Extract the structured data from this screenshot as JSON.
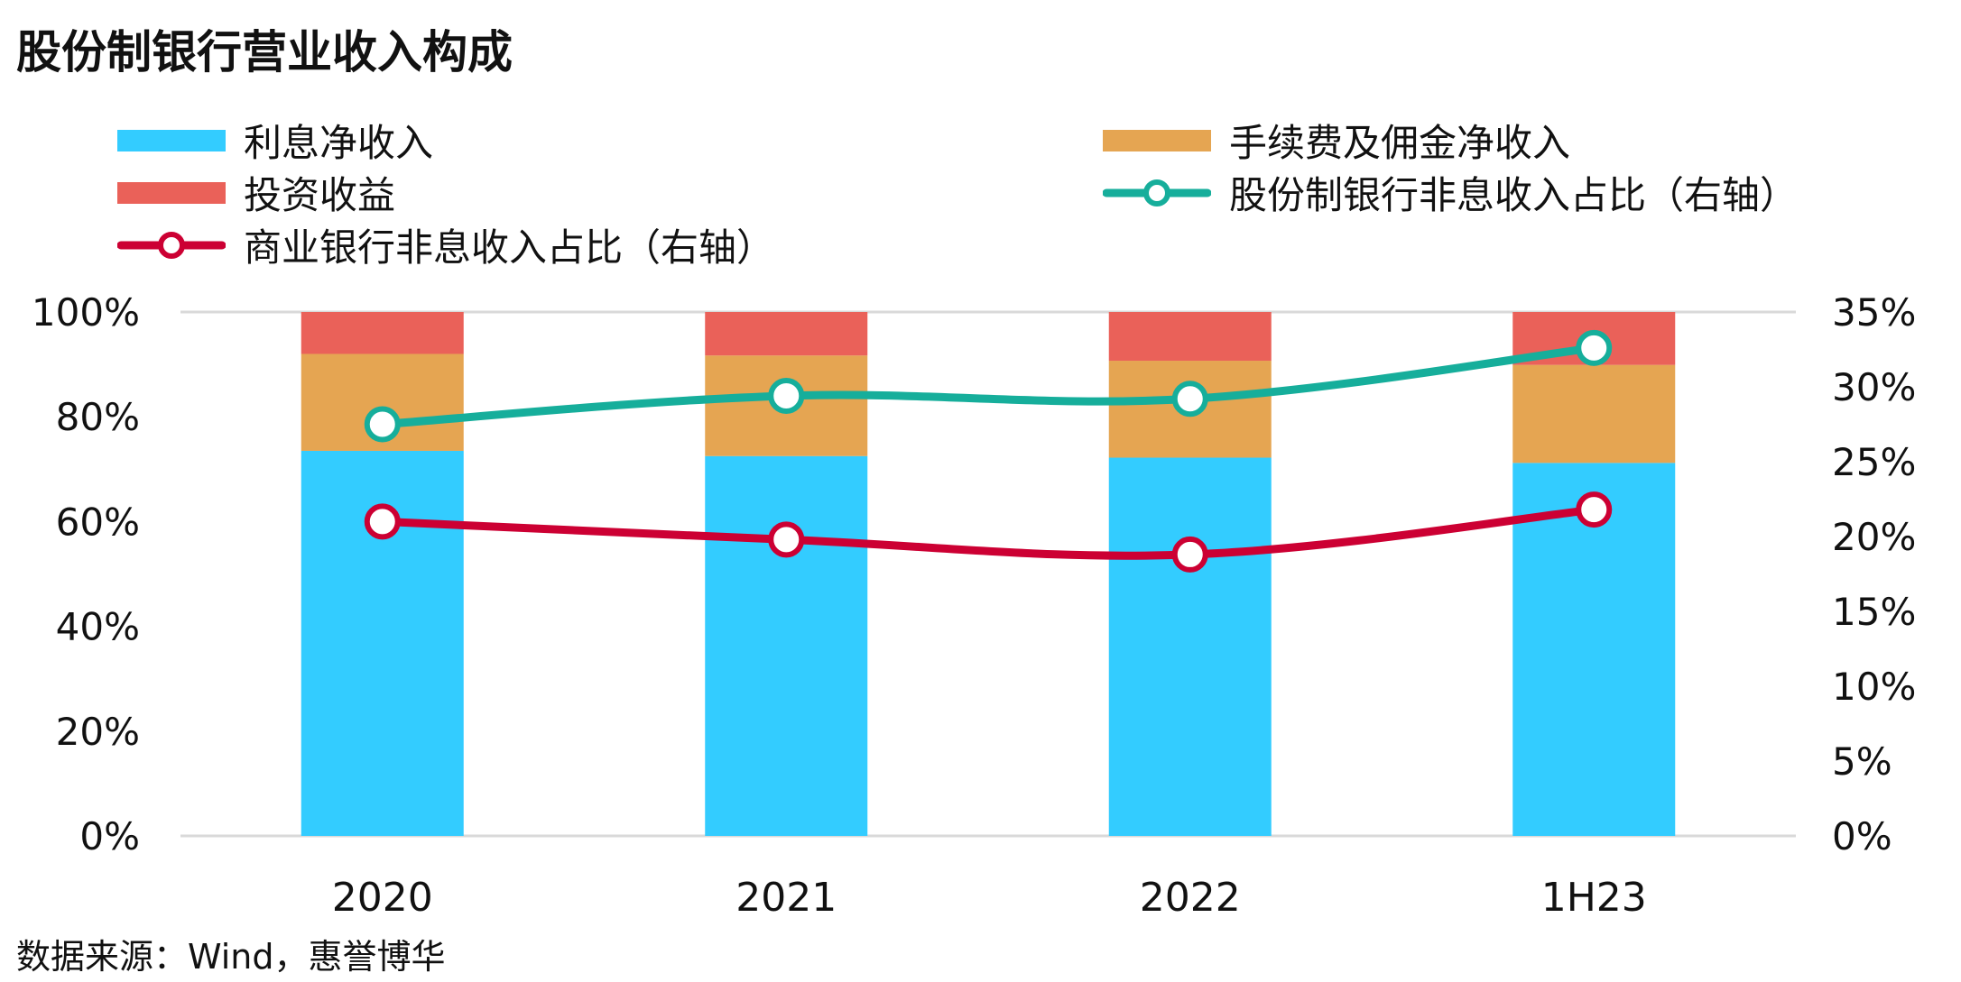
{
  "title": "股份制银行营业收入构成",
  "source": "数据来源：Wind，惠誉博华",
  "colors": {
    "interest": "#33CCFF",
    "fee": "#E5A552",
    "invest": "#EA6159",
    "joint_stock_line": "#16AE9B",
    "commercial_line": "#CC0033",
    "axis": "#D9D9D9"
  },
  "chart_data": {
    "type": "bar",
    "stacked": true,
    "categories": [
      "2020",
      "2021",
      "2022",
      "1H23"
    ],
    "series": [
      {
        "name": "利息净收入",
        "values": [
          73.5,
          72.5,
          72.2,
          71.2
        ]
      },
      {
        "name": "手续费及佣金净收入",
        "values": [
          18.5,
          19.2,
          18.5,
          18.7
        ]
      },
      {
        "name": "投资收益",
        "values": [
          8.0,
          8.3,
          9.3,
          10.1
        ]
      }
    ],
    "line_series": [
      {
        "name": "股份制银行非息收入占比（右轴）",
        "values": [
          27.5,
          29.4,
          29.2,
          32.6
        ]
      },
      {
        "name": "商业银行非息收入占比（右轴）",
        "values": [
          21.0,
          19.8,
          18.8,
          21.8
        ]
      }
    ],
    "left_axis": {
      "ylim": [
        0,
        100
      ],
      "ticks": [
        "0%",
        "20%",
        "40%",
        "60%",
        "80%",
        "100%"
      ]
    },
    "right_axis": {
      "ylim": [
        0,
        35
      ],
      "ticks": [
        "0%",
        "5%",
        "10%",
        "15%",
        "20%",
        "25%",
        "30%",
        "35%"
      ]
    },
    "legend_position": "top",
    "grid": false
  }
}
